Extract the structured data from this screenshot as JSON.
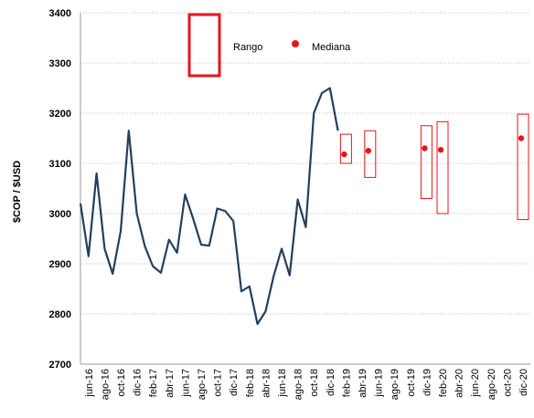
{
  "chart_data": {
    "type": "line",
    "ylabel": "$COP / $USD",
    "ylim": [
      2700,
      3400
    ],
    "yticks": [
      2700,
      2800,
      2900,
      3000,
      3100,
      3200,
      3300,
      3400
    ],
    "grid": true,
    "legend": "top",
    "categories": [
      null,
      "jun-16",
      null,
      "ago-16",
      null,
      "oct-16",
      null,
      "dic-16",
      null,
      "feb-17",
      null,
      "abr-17",
      null,
      "jun-17",
      null,
      "ago-17",
      null,
      "oct-17",
      null,
      "dic-17",
      null,
      "feb-18",
      null,
      "abr-18",
      null,
      "jun-18",
      null,
      "ago-18",
      null,
      "oct-18",
      null,
      "dic-18",
      null,
      "feb-19",
      null,
      "abr-19",
      null,
      "jun-19",
      null,
      "ago-19",
      null,
      "oct-19",
      null,
      "dic-19",
      null,
      "feb-20",
      null,
      "abr-20",
      null,
      "jun-20",
      null,
      "ago-20",
      null,
      "oct-20",
      null,
      "dic-20"
    ],
    "series": [
      {
        "color": "#243f5c",
        "values": [
          3020,
          2915,
          3080,
          2930,
          2880,
          2965,
          3165,
          3000,
          2935,
          2895,
          2882,
          2948,
          2922,
          3038,
          2990,
          2938,
          2936,
          3010,
          3005,
          2985,
          2845,
          2855,
          2780,
          2805,
          2875,
          2930,
          2877,
          3028,
          2973,
          3200,
          3240,
          3250,
          3165,
          null,
          null,
          null,
          null,
          null,
          null,
          null,
          null,
          null,
          null,
          null,
          null,
          null,
          null,
          null,
          null,
          null,
          null,
          null,
          null,
          null,
          null,
          null
        ]
      },
      {
        "name": "Rango",
        "type": "range",
        "color": "#e8141b",
        "low": [
          null,
          null,
          null,
          null,
          null,
          null,
          null,
          null,
          null,
          null,
          null,
          null,
          null,
          null,
          null,
          null,
          null,
          null,
          null,
          null,
          null,
          null,
          null,
          null,
          null,
          null,
          null,
          null,
          null,
          null,
          null,
          null,
          null,
          3100,
          null,
          null,
          3072,
          null,
          null,
          null,
          null,
          null,
          null,
          3030,
          null,
          3000,
          null,
          null,
          null,
          null,
          null,
          null,
          null,
          null,
          null,
          2988
        ],
        "high": [
          null,
          null,
          null,
          null,
          null,
          null,
          null,
          null,
          null,
          null,
          null,
          null,
          null,
          null,
          null,
          null,
          null,
          null,
          null,
          null,
          null,
          null,
          null,
          null,
          null,
          null,
          null,
          null,
          null,
          null,
          null,
          null,
          null,
          3158,
          null,
          null,
          3165,
          null,
          null,
          null,
          null,
          null,
          null,
          3175,
          null,
          3183,
          null,
          null,
          null,
          null,
          null,
          null,
          null,
          null,
          null,
          3198
        ]
      },
      {
        "name": "Mediana",
        "type": "dot",
        "color": "#e8141b",
        "values": [
          null,
          null,
          null,
          null,
          null,
          null,
          null,
          null,
          null,
          null,
          null,
          null,
          null,
          null,
          null,
          null,
          null,
          null,
          null,
          null,
          null,
          null,
          null,
          null,
          null,
          null,
          null,
          null,
          null,
          null,
          null,
          null,
          null,
          3118,
          null,
          null,
          3125,
          null,
          null,
          null,
          null,
          null,
          null,
          3130,
          null,
          3127,
          null,
          null,
          null,
          null,
          null,
          null,
          null,
          null,
          null,
          3150
        ]
      }
    ]
  }
}
